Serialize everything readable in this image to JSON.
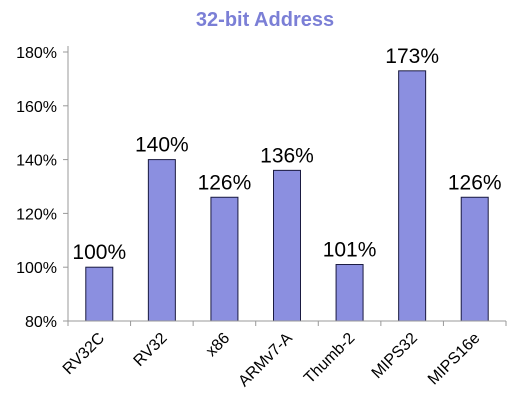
{
  "chart_data": {
    "type": "bar",
    "title": "32-bit Address",
    "categories": [
      "RV32C",
      "RV32",
      "x86",
      "ARMv7-A",
      "Thumb-2",
      "MIPS32",
      "MIPS16e"
    ],
    "values": [
      100,
      140,
      126,
      136,
      101,
      173,
      126
    ],
    "data_labels": [
      "100%",
      "140%",
      "126%",
      "136%",
      "101%",
      "173%",
      "126%"
    ],
    "ylim": [
      80,
      180
    ],
    "yticks": [
      80,
      100,
      120,
      140,
      160,
      180
    ],
    "ytick_labels": [
      "80%",
      "100%",
      "120%",
      "140%",
      "160%",
      "180%"
    ],
    "xlabel": "",
    "ylabel": "",
    "grid": false,
    "legend": "none"
  },
  "colors": {
    "bar_fill": "#8b8fe0",
    "bar_stroke": "#1a1a40",
    "title": "#7b7fd6",
    "axis": "#999999"
  }
}
